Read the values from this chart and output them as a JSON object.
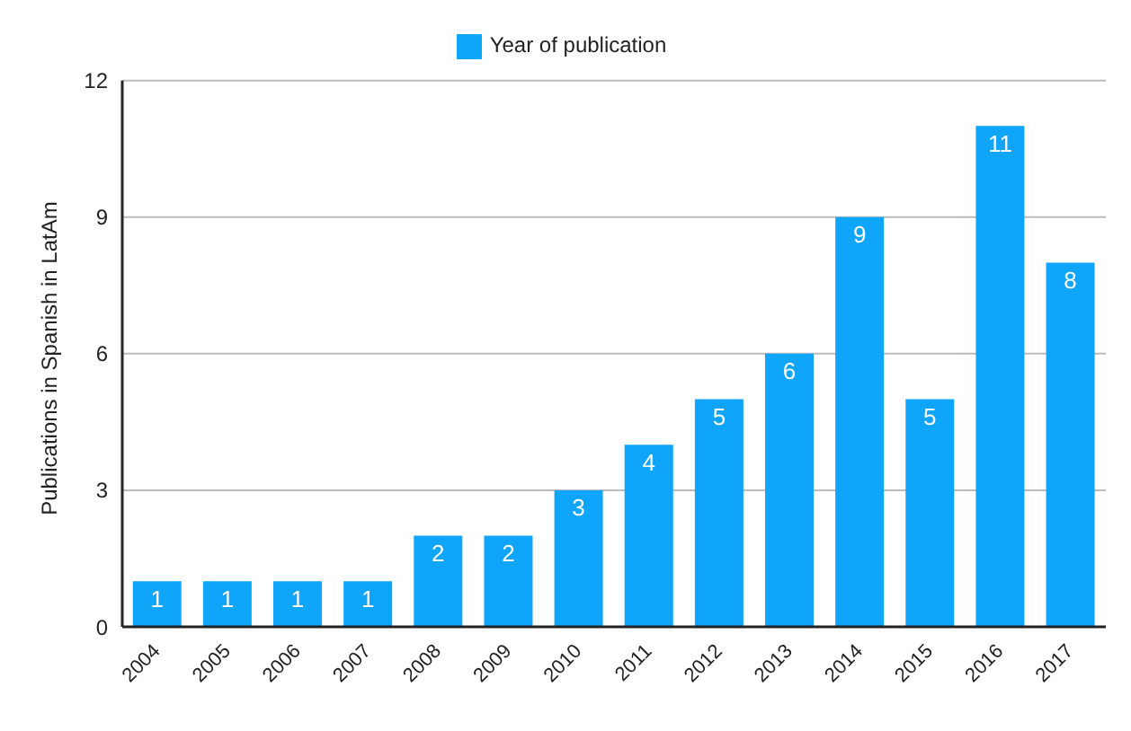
{
  "chart_data": {
    "type": "bar",
    "ylabel": "Publications in Spanish in LatAm",
    "categories": [
      "2004",
      "2005",
      "2006",
      "2007",
      "2008",
      "2009",
      "2010",
      "2011",
      "2012",
      "2013",
      "2014",
      "2015",
      "2016",
      "2017"
    ],
    "series": [
      {
        "name": "Year of publication",
        "color": "#0ea5fa",
        "values": [
          1,
          1,
          1,
          1,
          2,
          2,
          3,
          4,
          5,
          6,
          9,
          5,
          11,
          8
        ]
      }
    ],
    "ylim": [
      0,
      12
    ],
    "yticks": [
      0,
      3,
      6,
      9,
      12
    ],
    "grid": "y",
    "legend": "top",
    "data_labels": true
  }
}
